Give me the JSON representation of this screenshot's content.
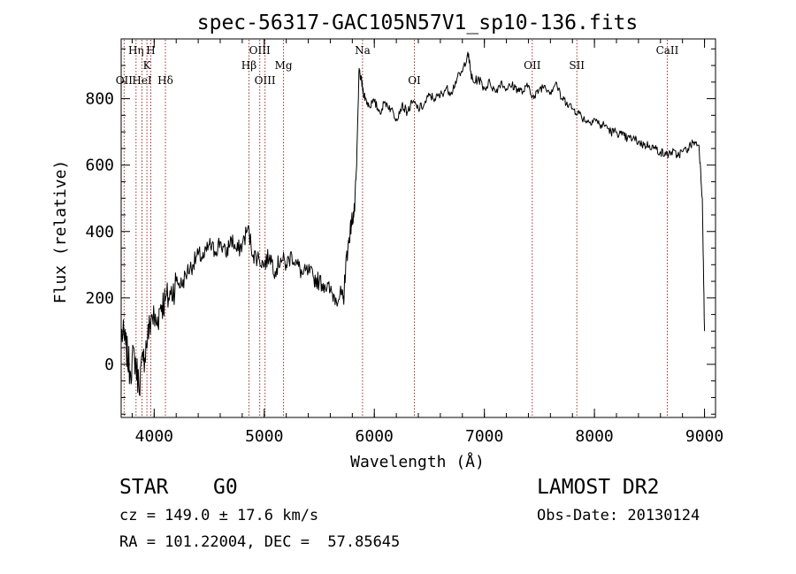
{
  "chart_data": {
    "type": "line",
    "title": "spec-56317-GAC105N57V1_sp10-136.fits",
    "xlabel": "Wavelength (Å)",
    "ylabel": "Flux (relative)",
    "xlim": [
      3700,
      9100
    ],
    "ylim": [
      -160,
      980
    ],
    "grid": false,
    "xticks": [
      4000,
      5000,
      6000,
      7000,
      8000,
      9000
    ],
    "yticks": [
      0,
      200,
      400,
      600,
      800
    ],
    "lines": [
      {
        "label": "OII",
        "x": 3727,
        "row": 3
      },
      {
        "label": "Hη",
        "x": 3835,
        "row": 1
      },
      {
        "label": "HeI",
        "x": 3889,
        "row": 3
      },
      {
        "label": "K",
        "x": 3934,
        "row": 2
      },
      {
        "label": "H",
        "x": 3969,
        "row": 1
      },
      {
        "label": "Hδ",
        "x": 4102,
        "row": 3
      },
      {
        "label": "Hβ",
        "x": 4861,
        "row": 2
      },
      {
        "label": "OIII",
        "x": 4959,
        "row": 1
      },
      {
        "label": "OIII",
        "x": 5007,
        "row": 3
      },
      {
        "label": "Mg",
        "x": 5175,
        "row": 2
      },
      {
        "label": "Na",
        "x": 5893,
        "row": 1
      },
      {
        "label": "OI",
        "x": 6364,
        "row": 3
      },
      {
        "label": "OII",
        "x": 7435,
        "row": 2
      },
      {
        "label": "SII",
        "x": 7840,
        "row": 2
      },
      {
        "label": "CaII",
        "x": 8662,
        "row": 1
      }
    ],
    "series": [
      {
        "x": [
          3700,
          3740,
          3780,
          3820,
          3860,
          3900,
          3940,
          3980,
          4020,
          4060,
          4100,
          4150,
          4200,
          4250,
          4300,
          4350,
          4400,
          4450,
          4500,
          4550,
          4600,
          4650,
          4700,
          4750,
          4800,
          4850,
          4900,
          4950,
          5000,
          5050,
          5100,
          5150,
          5200,
          5250,
          5300,
          5350,
          5400,
          5450,
          5500,
          5550,
          5600,
          5650,
          5700,
          5720,
          5740,
          5760,
          5780,
          5800,
          5820,
          5840,
          5860,
          5880,
          5900,
          5920,
          5950,
          6000,
          6050,
          6100,
          6150,
          6200,
          6250,
          6300,
          6350,
          6400,
          6450,
          6500,
          6550,
          6600,
          6650,
          6700,
          6750,
          6800,
          6850,
          6880,
          6900,
          6950,
          7000,
          7050,
          7100,
          7150,
          7200,
          7250,
          7300,
          7350,
          7400,
          7450,
          7500,
          7550,
          7600,
          7650,
          7700,
          7750,
          7800,
          7850,
          7900,
          7950,
          8000,
          8050,
          8100,
          8150,
          8200,
          8250,
          8300,
          8350,
          8400,
          8450,
          8500,
          8550,
          8600,
          8650,
          8700,
          8750,
          8800,
          8850,
          8900,
          8950,
          8980,
          9000
        ],
        "y": [
          100,
          60,
          -20,
          30,
          -60,
          10,
          80,
          150,
          120,
          180,
          190,
          210,
          250,
          240,
          280,
          300,
          330,
          320,
          360,
          340,
          370,
          330,
          380,
          340,
          360,
          410,
          330,
          320,
          300,
          330,
          280,
          320,
          300,
          330,
          300,
          270,
          280,
          260,
          250,
          240,
          220,
          200,
          210,
          190,
          300,
          350,
          400,
          440,
          460,
          600,
          880,
          860,
          820,
          800,
          780,
          790,
          760,
          790,
          770,
          740,
          780,
          760,
          790,
          770,
          780,
          810,
          800,
          810,
          830,
          820,
          860,
          880,
          940,
          870,
          850,
          860,
          830,
          850,
          820,
          850,
          830,
          840,
          830,
          820,
          840,
          800,
          830,
          840,
          820,
          850,
          800,
          790,
          770,
          760,
          740,
          730,
          740,
          720,
          720,
          700,
          700,
          690,
          680,
          680,
          670,
          660,
          660,
          650,
          640,
          630,
          640,
          630,
          640,
          650,
          670,
          660,
          500,
          100
        ]
      }
    ]
  },
  "info": {
    "object_class": "STAR",
    "subclass": "G0",
    "survey": "LAMOST DR2",
    "redshift": "cz = 149.0 ± 17.6 km/s",
    "obs_date": "Obs-Date: 20130124",
    "coords": "RA = 101.22004, DEC =  57.85645"
  }
}
